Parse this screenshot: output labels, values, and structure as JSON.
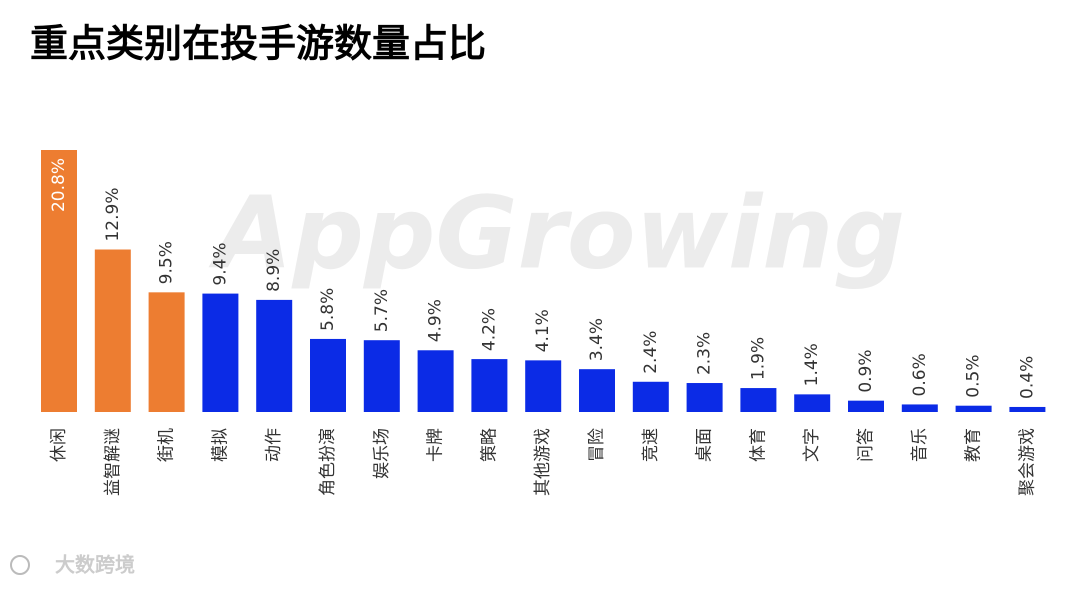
{
  "chart_data": {
    "type": "bar",
    "title": "重点类别在投手游数量占比",
    "categories": [
      "休闲",
      "益智解谜",
      "街机",
      "模拟",
      "动作",
      "角色扮演",
      "娱乐场",
      "卡牌",
      "策略",
      "其他游戏",
      "冒险",
      "竞速",
      "桌面",
      "体育",
      "文字",
      "问答",
      "音乐",
      "教育",
      "聚会游戏"
    ],
    "values": [
      20.8,
      12.9,
      9.5,
      9.4,
      8.9,
      5.8,
      5.7,
      4.9,
      4.2,
      4.1,
      3.4,
      2.4,
      2.3,
      1.9,
      1.4,
      0.9,
      0.6,
      0.5,
      0.4
    ],
    "value_labels": [
      "20.8%",
      "12.9%",
      "9.5%",
      "9.4%",
      "8.9%",
      "5.8%",
      "5.7%",
      "4.9%",
      "4.2%",
      "4.1%",
      "3.4%",
      "2.4%",
      "2.3%",
      "1.9%",
      "1.4%",
      "0.9%",
      "0.6%",
      "0.5%",
      "0.4%"
    ],
    "colors": [
      "#ed7d31",
      "#ed7d31",
      "#ed7d31",
      "#0b2be6",
      "#0b2be6",
      "#0b2be6",
      "#0b2be6",
      "#0b2be6",
      "#0b2be6",
      "#0b2be6",
      "#0b2be6",
      "#0b2be6",
      "#0b2be6",
      "#0b2be6",
      "#0b2be6",
      "#0b2be6",
      "#0b2be6",
      "#0b2be6",
      "#0b2be6"
    ],
    "watermark": "AppGrowing",
    "source": "大数跨境"
  }
}
